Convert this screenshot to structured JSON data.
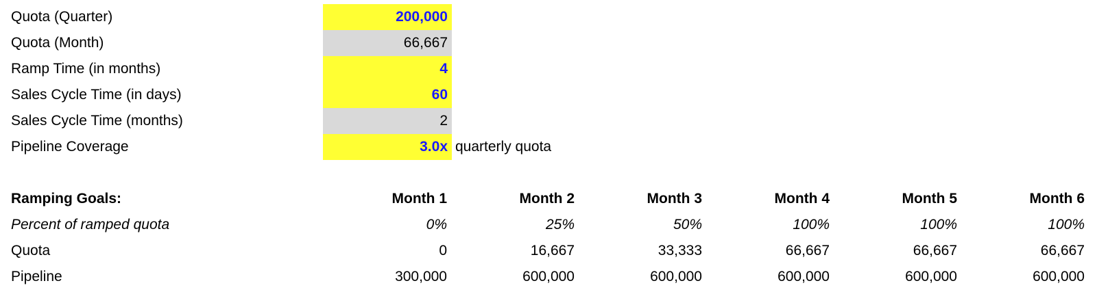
{
  "inputs": {
    "quota_quarter": {
      "label": "Quota (Quarter)",
      "value": "200,000"
    },
    "quota_month": {
      "label": "Quota (Month)",
      "value": "66,667"
    },
    "ramp_time": {
      "label": "Ramp Time (in months)",
      "value": "4"
    },
    "sales_cycle_days": {
      "label": "Sales Cycle Time (in days)",
      "value": "60"
    },
    "sales_cycle_months": {
      "label": "Sales Cycle Time (months)",
      "value": "2"
    },
    "pipeline_coverage": {
      "label": "Pipeline Coverage",
      "value": "3.0x",
      "note": "quarterly quota"
    }
  },
  "ramping": {
    "title": "Ramping Goals:",
    "months": [
      "Month 1",
      "Month 2",
      "Month 3",
      "Month 4",
      "Month 5",
      "Month 6"
    ],
    "rows": {
      "percent": {
        "label": "Percent of ramped quota",
        "values": [
          "0%",
          "25%",
          "50%",
          "100%",
          "100%",
          "100%"
        ]
      },
      "quota": {
        "label": "Quota",
        "values": [
          "0",
          "16,667",
          "33,333",
          "66,667",
          "66,667",
          "66,667"
        ]
      },
      "pipeline": {
        "label": "Pipeline",
        "values": [
          "300,000",
          "600,000",
          "600,000",
          "600,000",
          "600,000",
          "600,000"
        ]
      }
    }
  },
  "colors": {
    "input_fill": "#ffff33",
    "calculated_fill": "#d9d9d9",
    "input_text": "#1a1aff"
  }
}
